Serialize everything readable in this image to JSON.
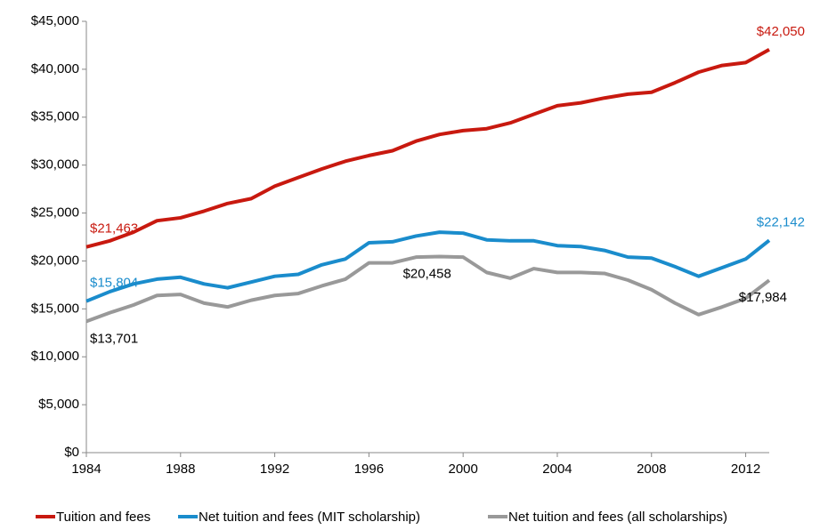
{
  "chart_data": {
    "type": "line",
    "x": [
      1984,
      1985,
      1986,
      1987,
      1988,
      1989,
      1990,
      1991,
      1992,
      1993,
      1994,
      1995,
      1996,
      1997,
      1998,
      1999,
      2000,
      2001,
      2002,
      2003,
      2004,
      2005,
      2006,
      2007,
      2008,
      2009,
      2010,
      2011,
      2012,
      2013
    ],
    "xlim": [
      1984,
      2013
    ],
    "xticks": [
      1984,
      1988,
      1992,
      1996,
      2000,
      2004,
      2008,
      2012
    ],
    "ylim": [
      0,
      45000
    ],
    "yticks": [
      {
        "value": 0,
        "label": "$0"
      },
      {
        "value": 5000,
        "label": "$5,000"
      },
      {
        "value": 10000,
        "label": "$10,000"
      },
      {
        "value": 15000,
        "label": "$15,000"
      },
      {
        "value": 20000,
        "label": "$20,000"
      },
      {
        "value": 25000,
        "label": "$25,000"
      },
      {
        "value": 30000,
        "label": "$30,000"
      },
      {
        "value": 35000,
        "label": "$35,000"
      },
      {
        "value": 40000,
        "label": "$40,000"
      },
      {
        "value": 45000,
        "label": "$45,000"
      }
    ],
    "grid": false,
    "legend": "bottom",
    "series": [
      {
        "name": "Tuition and fees",
        "color": "#c8190f",
        "label_color": "#c8190f",
        "values": [
          21463,
          22100,
          23000,
          24200,
          24500,
          25200,
          26000,
          26500,
          27800,
          28700,
          29600,
          30400,
          31000,
          31500,
          32500,
          33200,
          33600,
          33800,
          34400,
          35300,
          36200,
          36500,
          37000,
          37400,
          37600,
          38600,
          39700,
          40400,
          40700,
          42050
        ],
        "value_labels": [
          "$21,463",
          null,
          null,
          null,
          null,
          null,
          null,
          null,
          null,
          null,
          null,
          null,
          null,
          null,
          null,
          null,
          null,
          null,
          null,
          null,
          null,
          null,
          null,
          null,
          null,
          null,
          null,
          null,
          null,
          "$42,050"
        ]
      },
      {
        "name": "Net tuition and fees (MIT scholarship)",
        "color": "#1a8ccc",
        "label_color": "#1a8ccc",
        "values": [
          15804,
          16800,
          17600,
          18100,
          18300,
          17600,
          17200,
          17800,
          18400,
          18600,
          19600,
          20200,
          21900,
          22000,
          22600,
          23000,
          22900,
          22200,
          22100,
          22100,
          21600,
          21500,
          21100,
          20400,
          20300,
          19400,
          18400,
          19300,
          20200,
          22142
        ],
        "value_labels": [
          "$15,804",
          null,
          null,
          null,
          null,
          null,
          null,
          null,
          null,
          null,
          null,
          null,
          null,
          null,
          null,
          null,
          null,
          null,
          null,
          null,
          null,
          null,
          null,
          null,
          null,
          null,
          null,
          null,
          null,
          "$22,142"
        ]
      },
      {
        "name": "Net tuition and fees (all scholarships)",
        "color": "#999999",
        "label_color": "#000000",
        "values": [
          13701,
          14600,
          15400,
          16400,
          16500,
          15600,
          15200,
          15900,
          16400,
          16600,
          17400,
          18100,
          19800,
          19800,
          20400,
          20458,
          20400,
          18800,
          18200,
          19200,
          18800,
          18800,
          18700,
          18000,
          17000,
          15600,
          14400,
          15200,
          16100,
          17984
        ],
        "value_labels": [
          "$13,701",
          null,
          null,
          null,
          null,
          null,
          null,
          null,
          null,
          null,
          null,
          null,
          null,
          null,
          null,
          "$20,458",
          null,
          null,
          null,
          null,
          null,
          null,
          null,
          null,
          null,
          null,
          null,
          null,
          null,
          "$17,984"
        ]
      }
    ]
  }
}
